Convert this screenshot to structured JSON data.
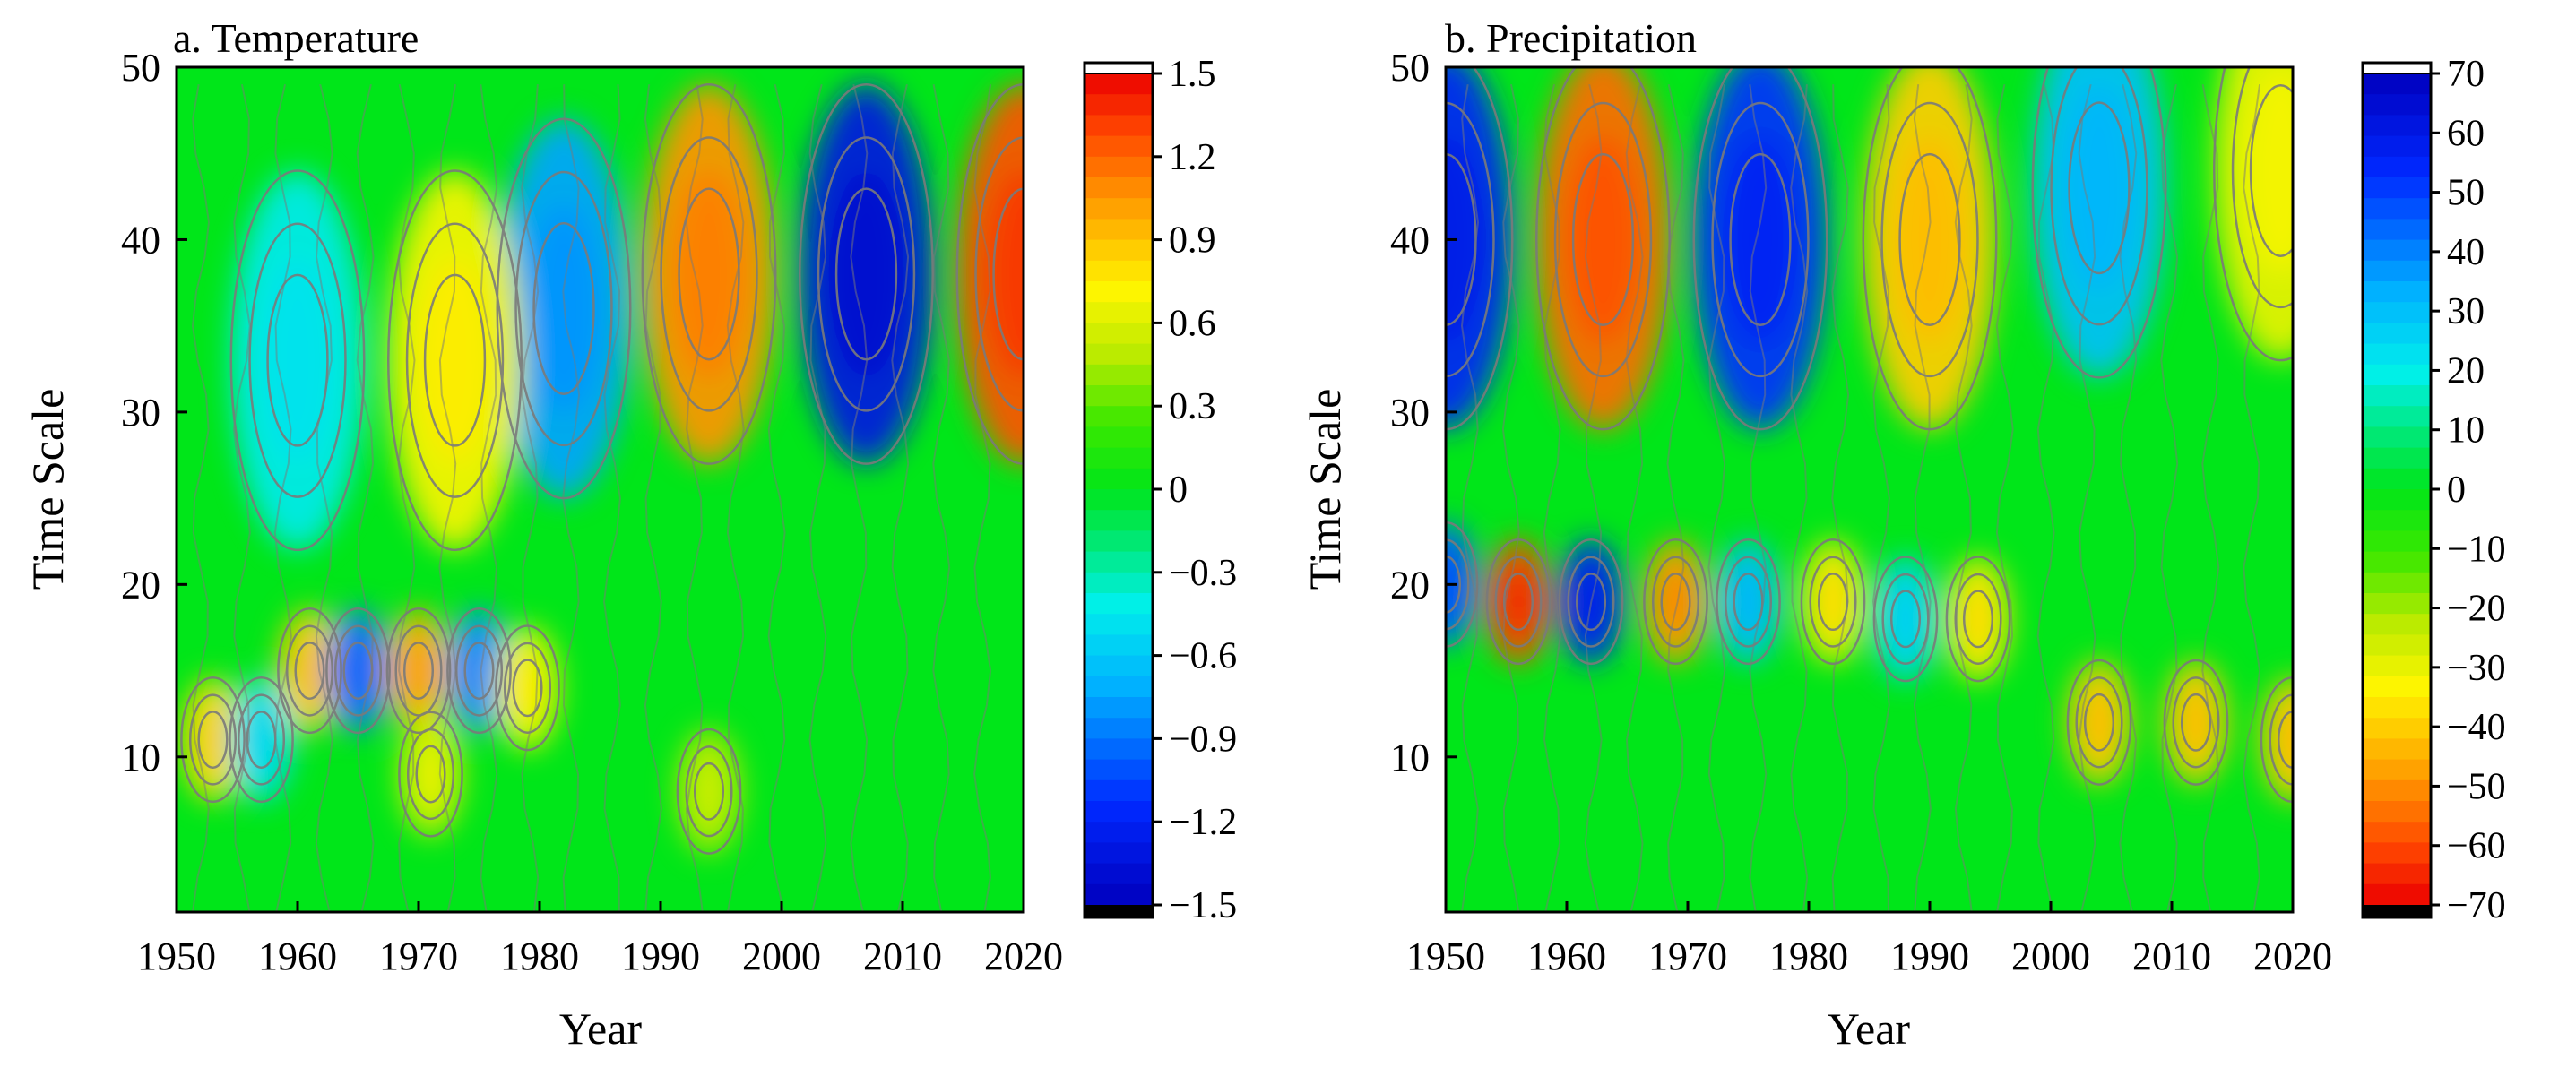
{
  "chart_data": [
    {
      "type": "heatmap",
      "title": "a. Temperature",
      "xlabel": "Year",
      "ylabel": "Time Scale",
      "xlim": [
        1950,
        2020
      ],
      "ylim": [
        1,
        50
      ],
      "xticks": [
        "1950",
        "1960",
        "1970",
        "1980",
        "1990",
        "2000",
        "2010",
        "2020"
      ],
      "yticks": [
        "10",
        "20",
        "30",
        "40",
        "50"
      ],
      "colorbar": {
        "range": [
          -1.5,
          1.5
        ],
        "ticks": [
          "1.5",
          "1.2",
          "0.9",
          "0.6",
          "0.3",
          "0",
          "−0.3",
          "−0.6",
          "−0.9",
          "−1.2",
          "−1.5"
        ],
        "high_color": "#ff0000",
        "low_color": "#0000ff"
      },
      "features": [
        {
          "year": 1994,
          "scale": 38,
          "value": 1.05
        },
        {
          "year": 2007,
          "scale": 38,
          "value": -1.3
        },
        {
          "year": 2020,
          "scale": 38,
          "value": 1.25
        },
        {
          "year": 1982,
          "scale": 36,
          "value": -0.75
        },
        {
          "year": 1973,
          "scale": 33,
          "value": 0.7
        },
        {
          "year": 1960,
          "scale": 33,
          "value": -0.45
        },
        {
          "year": 1961,
          "scale": 15,
          "value": 0.85
        },
        {
          "year": 1965,
          "scale": 15,
          "value": -0.9
        },
        {
          "year": 1970,
          "scale": 15,
          "value": 0.95
        },
        {
          "year": 1975,
          "scale": 15,
          "value": -0.8
        },
        {
          "year": 1979,
          "scale": 14,
          "value": 0.7
        },
        {
          "year": 1953,
          "scale": 11,
          "value": 0.8
        },
        {
          "year": 1957,
          "scale": 11,
          "value": -0.5
        },
        {
          "year": 1971,
          "scale": 9,
          "value": 0.6
        },
        {
          "year": 1994,
          "scale": 8,
          "value": 0.5
        }
      ]
    },
    {
      "type": "heatmap",
      "title": "b. Precipitation",
      "xlabel": "Year",
      "ylabel": "Time Scale",
      "xlim": [
        1950,
        2020
      ],
      "ylim": [
        1,
        50
      ],
      "xticks": [
        "1950",
        "1960",
        "1970",
        "1980",
        "1990",
        "2000",
        "2010",
        "2020"
      ],
      "yticks": [
        "10",
        "20",
        "30",
        "40",
        "50"
      ],
      "colorbar": {
        "range": [
          -70,
          70
        ],
        "ticks": [
          "70",
          "60",
          "50",
          "40",
          "30",
          "20",
          "10",
          "0",
          "−10",
          "−20",
          "−30",
          "−40",
          "−50",
          "−60",
          "−70"
        ],
        "high_color": "#0000ff",
        "low_color": "#ff0000"
      },
      "features": [
        {
          "year": 1950,
          "scale": 40,
          "value": 55
        },
        {
          "year": 1963,
          "scale": 40,
          "value": -55
        },
        {
          "year": 1976,
          "scale": 40,
          "value": 52
        },
        {
          "year": 1990,
          "scale": 40,
          "value": -40
        },
        {
          "year": 2004,
          "scale": 43,
          "value": 30
        },
        {
          "year": 2019,
          "scale": 44,
          "value": -30
        },
        {
          "year": 1950,
          "scale": 20,
          "value": 45
        },
        {
          "year": 1956,
          "scale": 19,
          "value": -60
        },
        {
          "year": 1962,
          "scale": 19,
          "value": 55
        },
        {
          "year": 1969,
          "scale": 19,
          "value": -48
        },
        {
          "year": 1975,
          "scale": 19,
          "value": 30
        },
        {
          "year": 1982,
          "scale": 19,
          "value": -35
        },
        {
          "year": 1988,
          "scale": 18,
          "value": 25
        },
        {
          "year": 1994,
          "scale": 18,
          "value": -35
        },
        {
          "year": 2004,
          "scale": 12,
          "value": -40
        },
        {
          "year": 2012,
          "scale": 12,
          "value": -40
        },
        {
          "year": 2020,
          "scale": 11,
          "value": -40
        }
      ]
    }
  ]
}
